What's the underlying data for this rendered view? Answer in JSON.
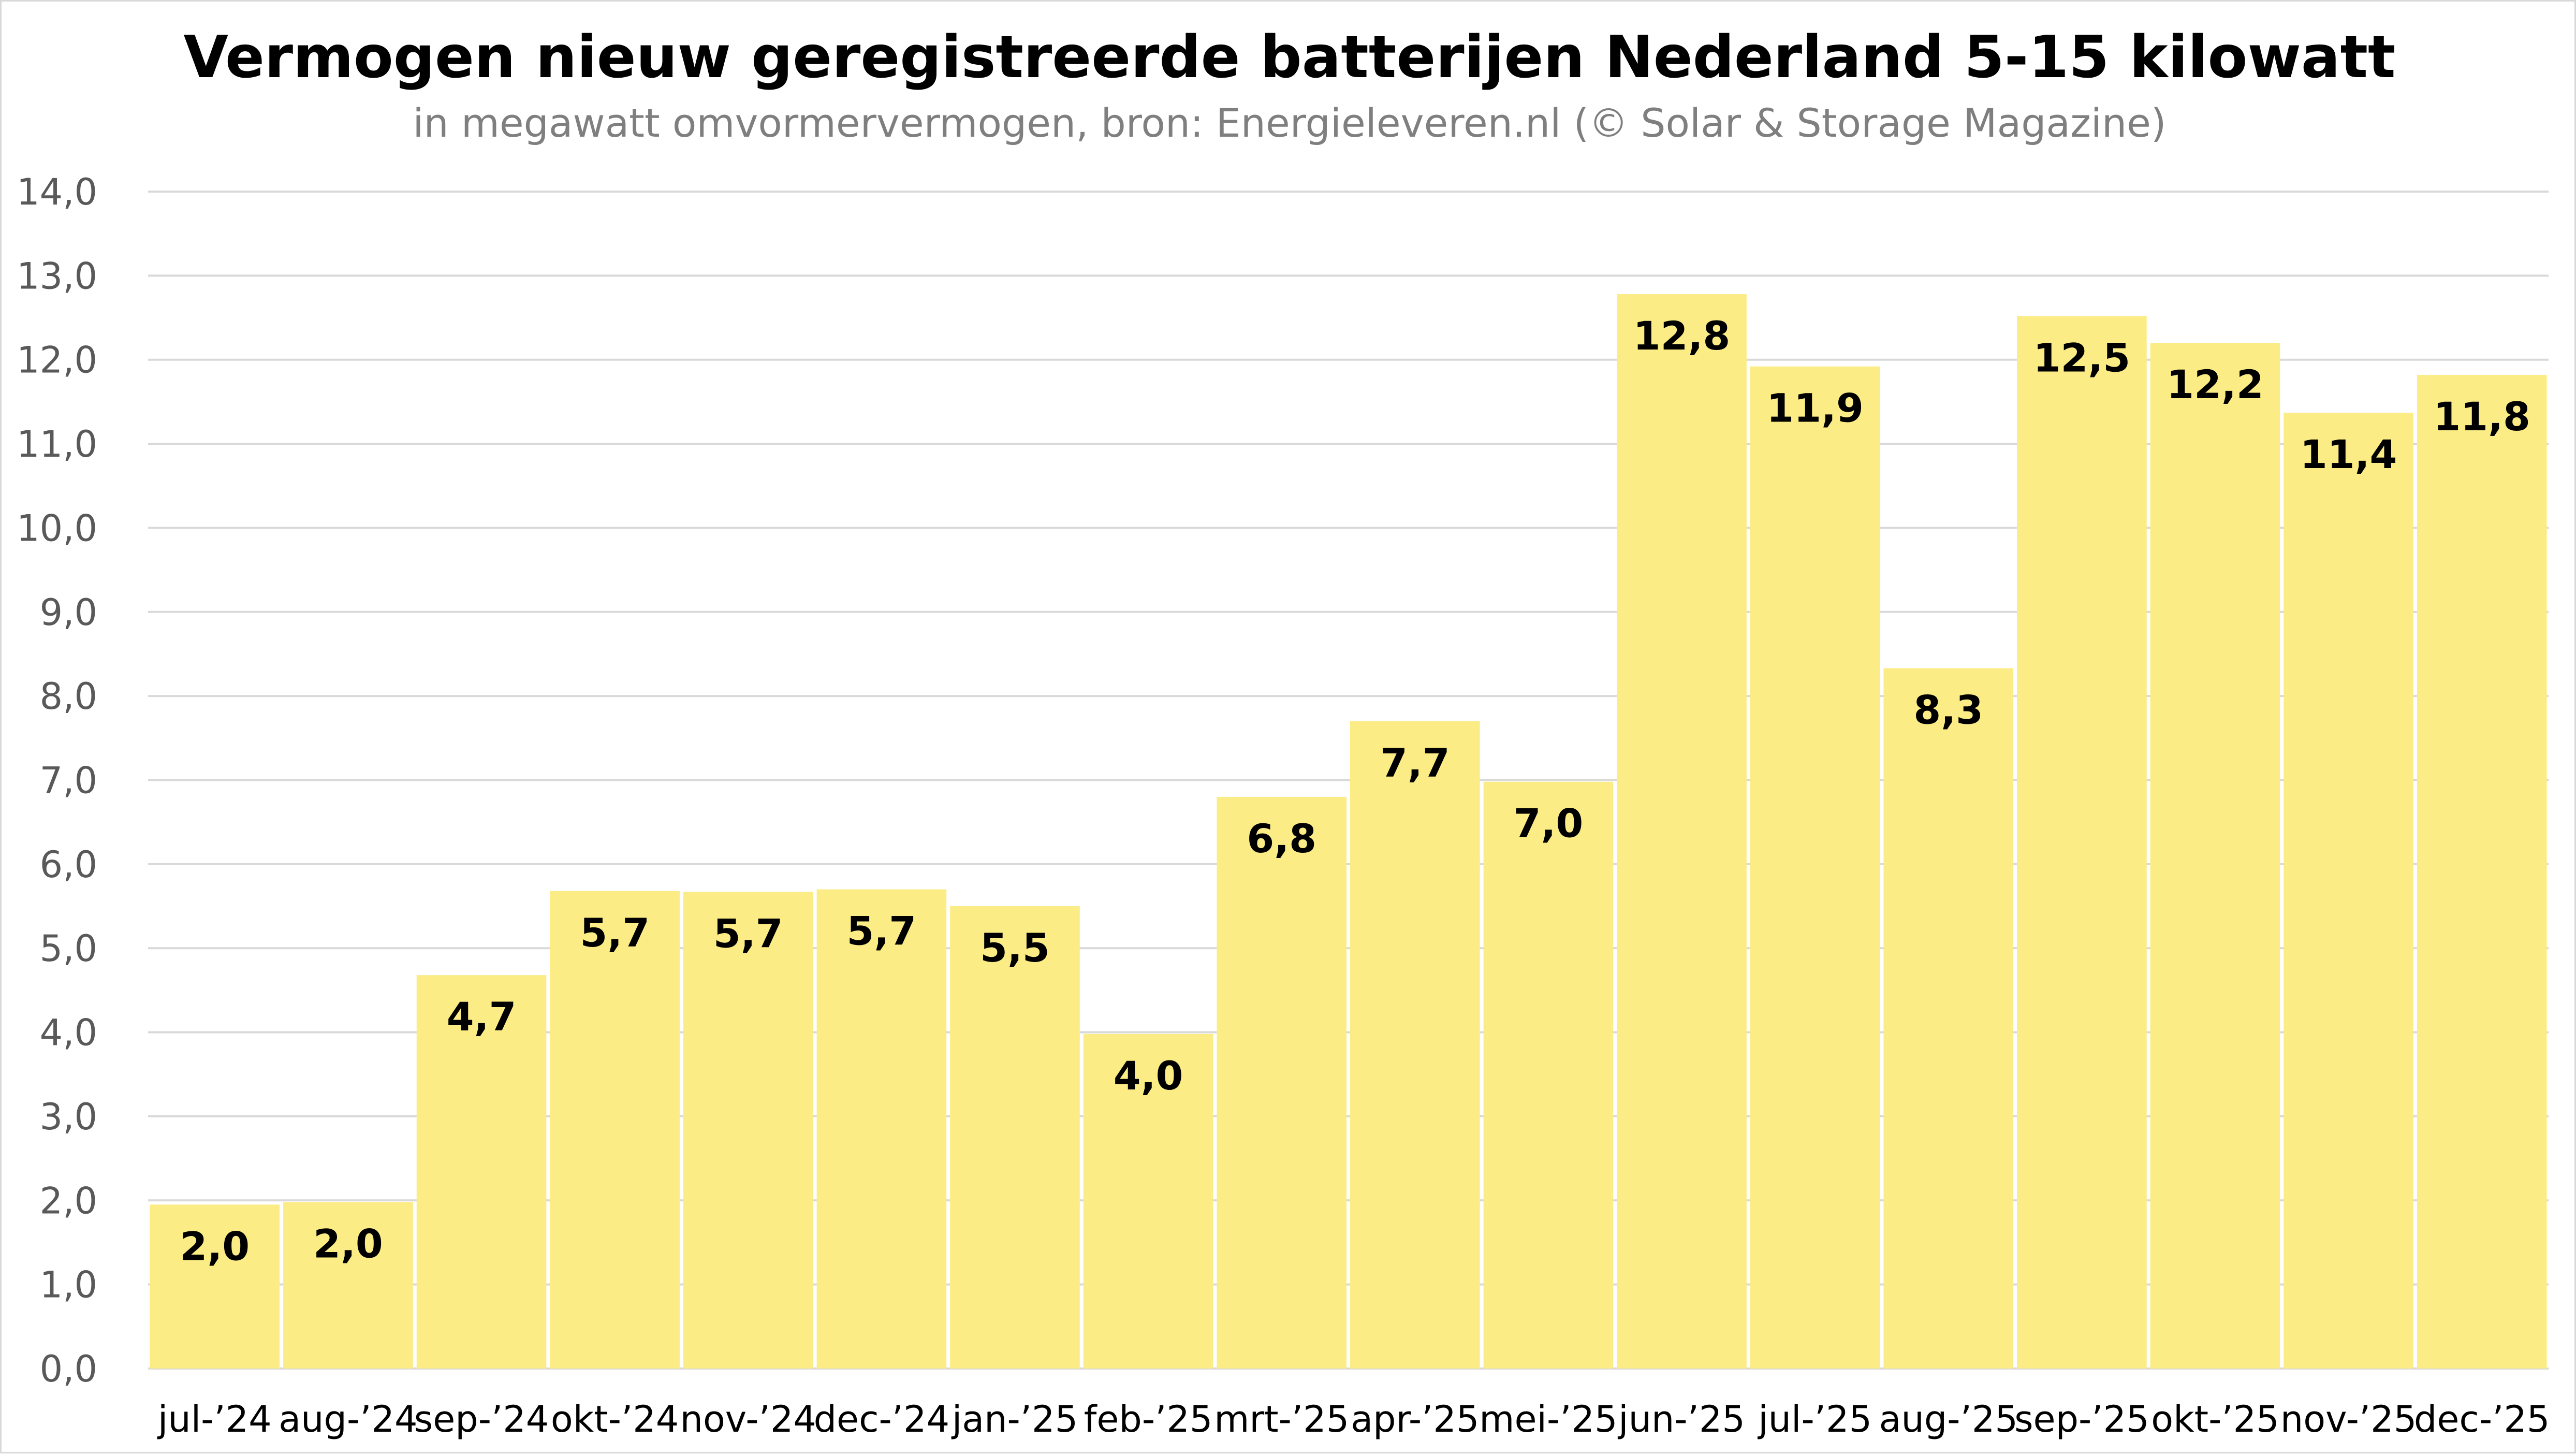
{
  "chart_data": {
    "type": "bar",
    "title": "Vermogen nieuw geregistreerde batterijen Nederland 5-15 kilowatt",
    "subtitle": "in megawatt omvormervermogen, bron: Energieleveren.nl (© Solar & Storage Magazine)",
    "xlabel": "",
    "ylabel": "",
    "ylim": [
      0,
      14
    ],
    "y_ticks": [
      0,
      1,
      2,
      3,
      4,
      5,
      6,
      7,
      8,
      9,
      10,
      11,
      12,
      13,
      14
    ],
    "y_tick_labels": [
      "0,0",
      "1,0",
      "2,0",
      "3,0",
      "4,0",
      "5,0",
      "6,0",
      "7,0",
      "8,0",
      "9,0",
      "10,0",
      "11,0",
      "12,0",
      "13,0",
      "14,0"
    ],
    "grid": true,
    "bar_color": "#fcec85",
    "categories": [
      "jul-’24",
      "aug-’24",
      "sep-’24",
      "okt-’24",
      "nov-’24",
      "dec-’24",
      "jan-’25",
      "feb-’25",
      "mrt-’25",
      "apr-’25",
      "mei-’25",
      "jun-’25",
      "jul-’25",
      "aug-’25",
      "sep-’25",
      "okt-’25",
      "nov-’25",
      "dec-’25"
    ],
    "values": [
      1.95,
      1.98,
      4.68,
      5.68,
      5.67,
      5.7,
      5.5,
      3.98,
      6.8,
      7.7,
      6.98,
      12.78,
      11.92,
      8.33,
      12.52,
      12.2,
      11.37,
      11.82
    ],
    "data_labels": [
      "2,0",
      "2,0",
      "4,7",
      "5,7",
      "5,7",
      "5,7",
      "5,5",
      "4,0",
      "6,8",
      "7,7",
      "7,0",
      "12,8",
      "11,9",
      "8,3",
      "12,5",
      "12,2",
      "11,4",
      "11,8"
    ]
  }
}
